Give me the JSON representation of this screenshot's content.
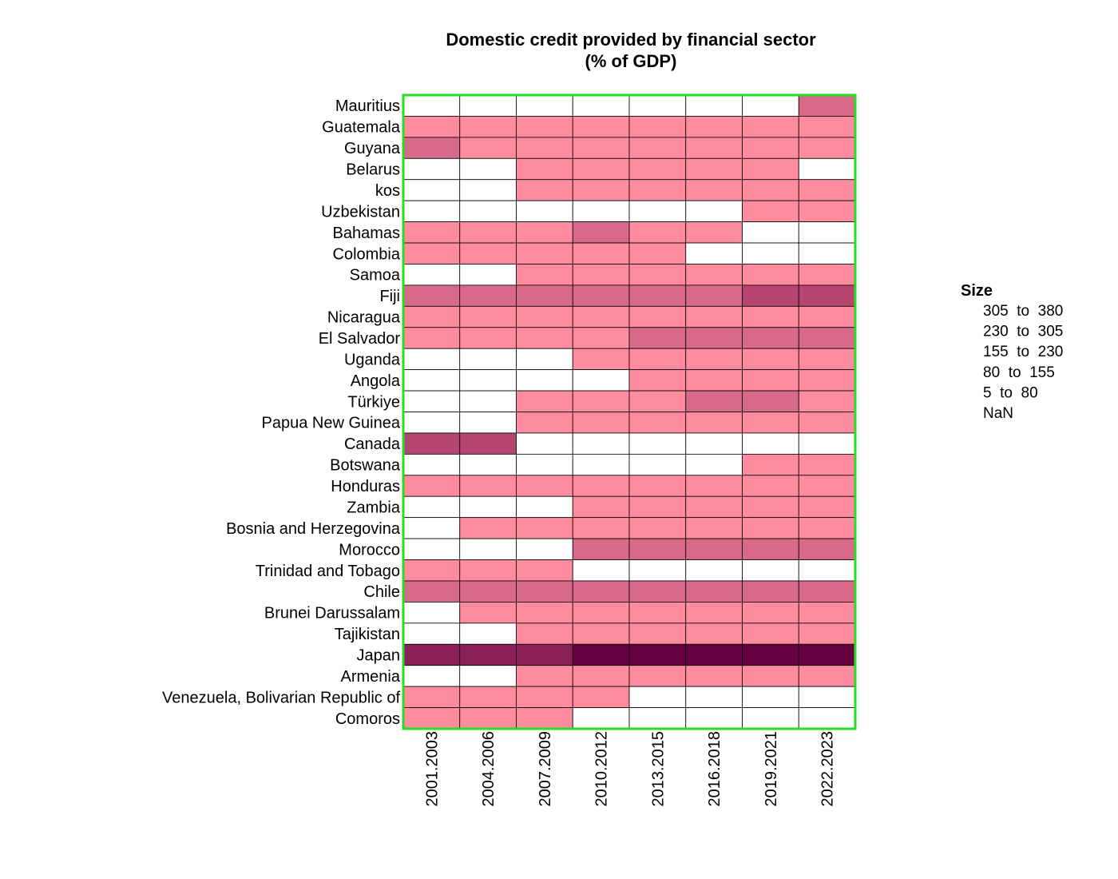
{
  "chart_data": {
    "type": "heatmap",
    "title_line1": "Domestic credit provided by financial sector",
    "title_line2": "(% of GDP)",
    "columns": [
      "2001.2003",
      "2004.2006",
      "2007.2009",
      "2010.2012",
      "2013.2015",
      "2016.2018",
      "2019.2021",
      "2022.2023"
    ],
    "rows": [
      "Mauritius",
      "Guatemala",
      "Guyana",
      "Belarus",
      "kos",
      "Uzbekistan",
      "Bahamas",
      "Colombia",
      "Samoa",
      "Fiji",
      "Nicaragua",
      "El Salvador",
      "Uganda",
      "Angola",
      "Türkiye",
      "Papua New Guinea",
      "Canada",
      "Botswana",
      "Honduras",
      "Zambia",
      "Bosnia and Herzegovina",
      "Morocco",
      "Trinidad and Tobago",
      "Chile",
      "Brunei Darussalam",
      "Tajikistan",
      "Japan",
      "Armenia",
      "Venezuela, Bolivarian Republic of",
      "Comoros"
    ],
    "bin_labels": [
      "NaN",
      "5  to  80",
      "80  to  155",
      "155  to  230",
      "230  to  305",
      "305  to  380"
    ],
    "bin_colors": [
      "#ffffff",
      "#ff8c9e",
      "#d66a88",
      "#b5456f",
      "#8b1f57",
      "#66003f"
    ],
    "cells": [
      [
        0,
        0,
        0,
        0,
        0,
        0,
        0,
        2
      ],
      [
        1,
        1,
        1,
        1,
        1,
        1,
        1,
        1
      ],
      [
        2,
        1,
        1,
        1,
        1,
        1,
        1,
        1
      ],
      [
        0,
        0,
        1,
        1,
        1,
        1,
        1,
        0
      ],
      [
        0,
        0,
        1,
        1,
        1,
        1,
        1,
        1
      ],
      [
        0,
        0,
        0,
        0,
        0,
        0,
        1,
        1
      ],
      [
        1,
        1,
        1,
        2,
        1,
        1,
        0,
        0
      ],
      [
        1,
        1,
        1,
        1,
        1,
        0,
        0,
        0
      ],
      [
        0,
        0,
        1,
        1,
        1,
        1,
        1,
        1
      ],
      [
        2,
        2,
        2,
        2,
        2,
        2,
        3,
        3
      ],
      [
        1,
        1,
        1,
        1,
        1,
        1,
        1,
        1
      ],
      [
        1,
        1,
        1,
        1,
        2,
        2,
        2,
        2
      ],
      [
        0,
        0,
        0,
        1,
        1,
        1,
        1,
        1
      ],
      [
        0,
        0,
        0,
        0,
        1,
        1,
        1,
        1
      ],
      [
        0,
        0,
        1,
        1,
        1,
        2,
        2,
        1
      ],
      [
        0,
        0,
        1,
        1,
        1,
        1,
        1,
        1
      ],
      [
        3,
        3,
        0,
        0,
        0,
        0,
        0,
        0
      ],
      [
        0,
        0,
        0,
        0,
        0,
        0,
        1,
        1
      ],
      [
        1,
        1,
        1,
        1,
        1,
        1,
        1,
        1
      ],
      [
        0,
        0,
        0,
        1,
        1,
        1,
        1,
        1
      ],
      [
        0,
        1,
        1,
        1,
        1,
        1,
        1,
        1
      ],
      [
        0,
        0,
        0,
        2,
        2,
        2,
        2,
        2
      ],
      [
        1,
        1,
        1,
        0,
        0,
        0,
        0,
        0
      ],
      [
        2,
        2,
        2,
        2,
        2,
        2,
        2,
        2
      ],
      [
        0,
        1,
        1,
        1,
        1,
        1,
        1,
        1
      ],
      [
        0,
        0,
        1,
        1,
        1,
        1,
        1,
        1
      ],
      [
        4,
        4,
        4,
        5,
        5,
        5,
        5,
        5
      ],
      [
        0,
        0,
        1,
        1,
        1,
        1,
        1,
        1
      ],
      [
        1,
        1,
        1,
        1,
        0,
        0,
        0,
        0
      ],
      [
        1,
        1,
        1,
        0,
        0,
        0,
        0,
        0
      ]
    ],
    "legend": {
      "title": "Size",
      "items": [
        "305  to  380",
        "230  to  305",
        "155  to  230",
        "80  to  155",
        "5  to  80",
        "NaN"
      ],
      "placement": "right"
    },
    "border_color": "#22e022",
    "cell_border_color": "#000000"
  }
}
